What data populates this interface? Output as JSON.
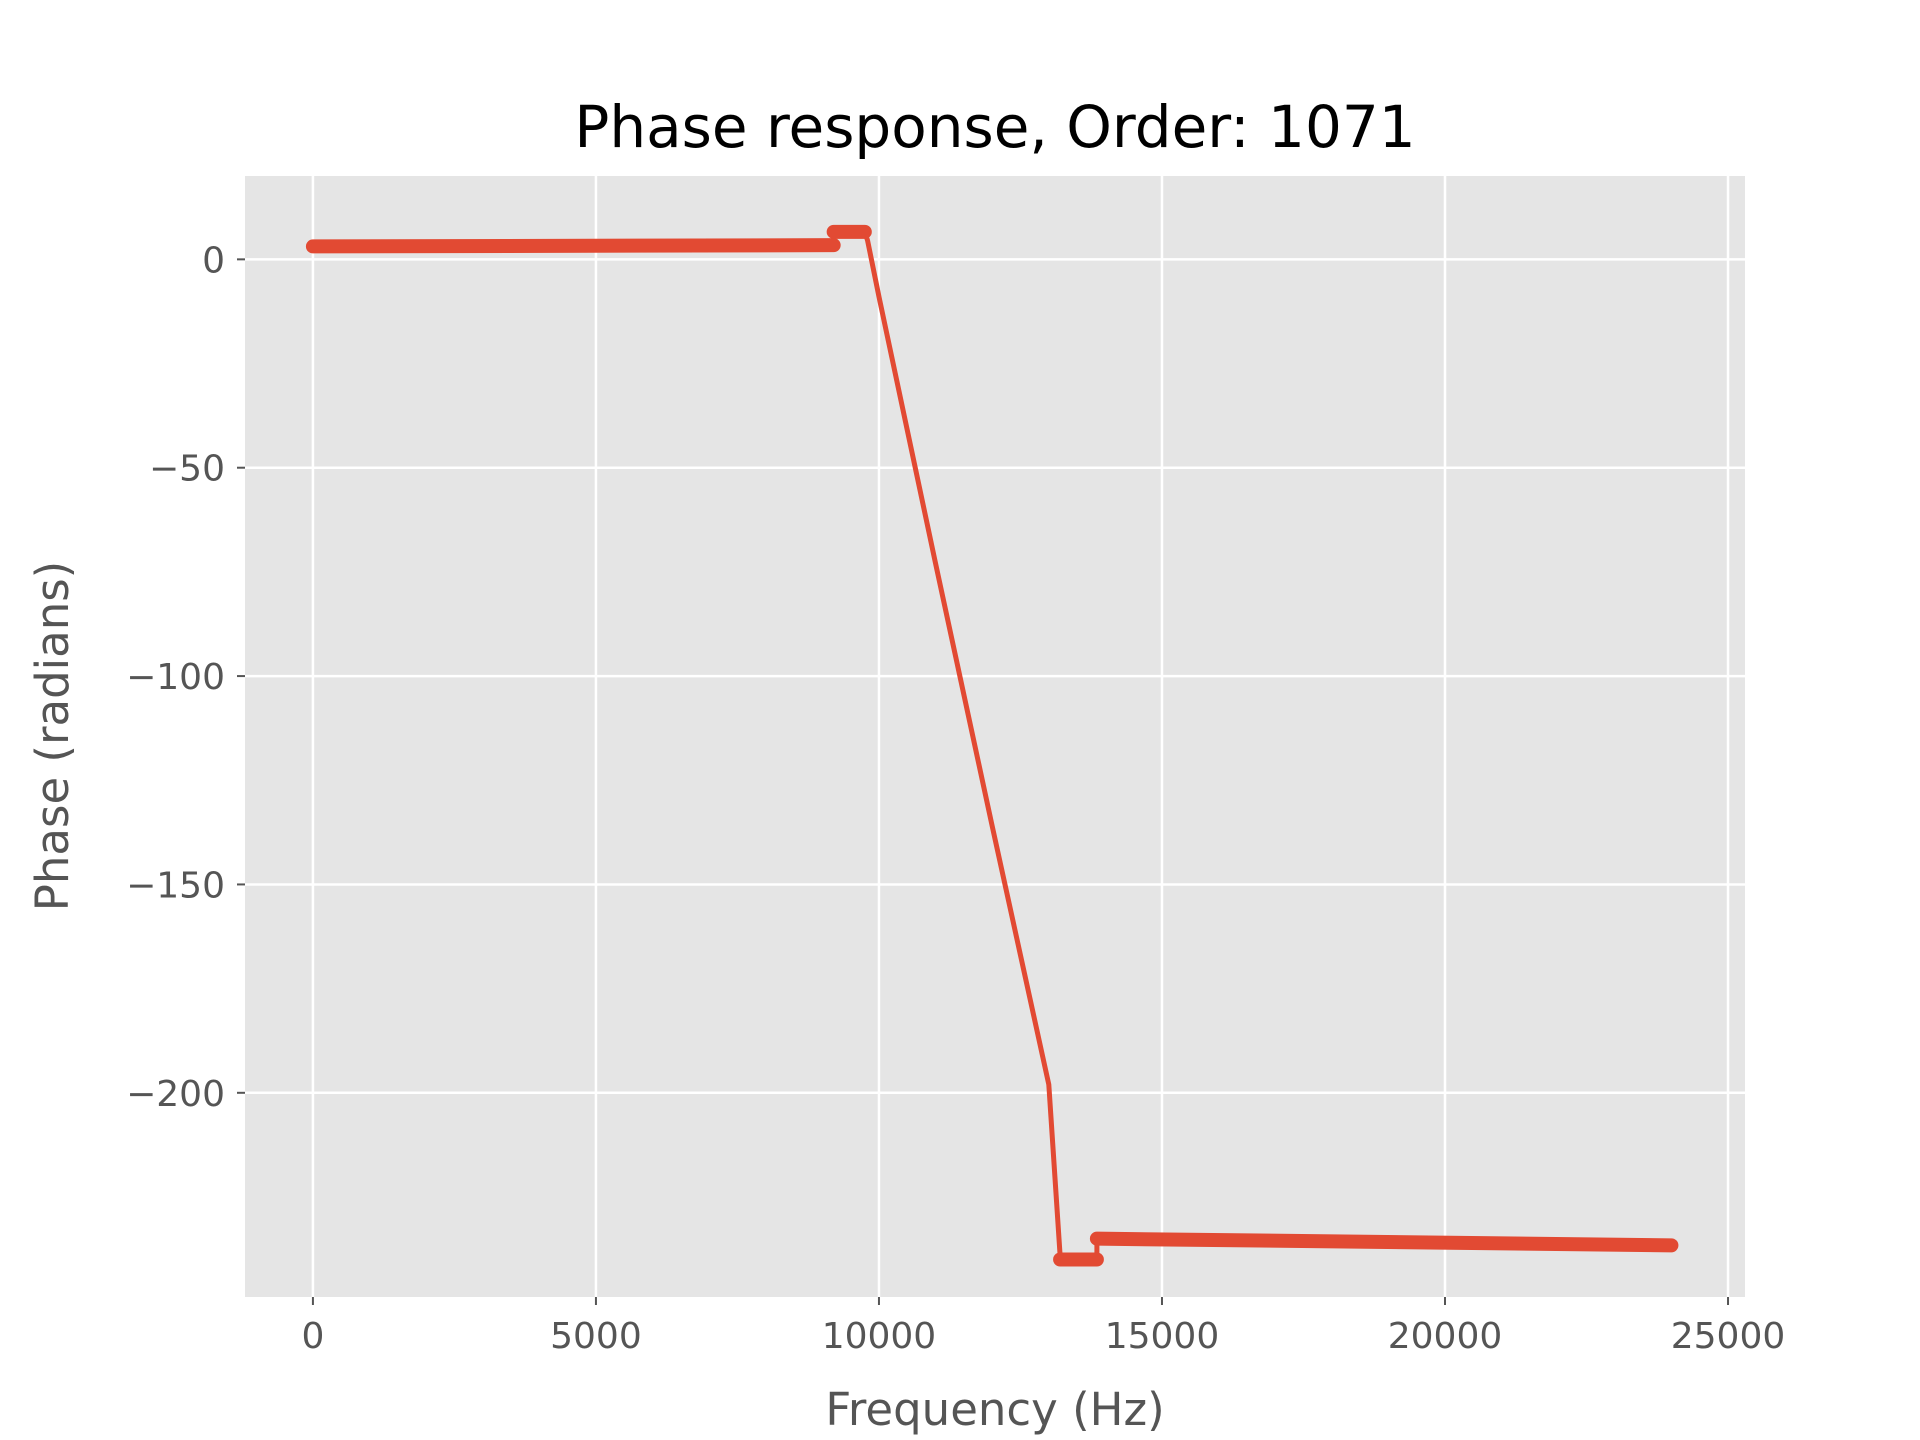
{
  "chart_data": {
    "type": "line",
    "title": "Phase response, Order: 1071",
    "xlabel": "Frequency (Hz)",
    "ylabel": "Phase (radians)",
    "xlim": [
      -1200,
      25300
    ],
    "ylim": [
      -249,
      20
    ],
    "xticks": [
      0,
      5000,
      10000,
      15000,
      20000,
      25000
    ],
    "xtick_labels": [
      "0",
      "5000",
      "10000",
      "15000",
      "20000",
      "25000"
    ],
    "yticks": [
      0,
      -50,
      -100,
      -150,
      -200
    ],
    "ytick_labels": [
      "0",
      "−50",
      "−100",
      "−150",
      "−200"
    ],
    "grid": true,
    "background": "#e5e5e5",
    "line_color": "#e24a33",
    "series": [
      {
        "x": [
          0,
          9200,
          9200,
          9750,
          9800,
          10000,
          11000,
          12000,
          13000,
          13200,
          13200,
          13850,
          13850,
          16000,
          18000,
          20000,
          22000,
          24000
        ],
        "y": [
          3.1,
          3.4,
          6.6,
          6.6,
          4.5,
          -9,
          -73,
          -136,
          -198,
          -239,
          -240,
          -240,
          -235,
          -235.3,
          -235.5,
          -235.8,
          -236.2,
          -236.6
        ]
      }
    ]
  }
}
